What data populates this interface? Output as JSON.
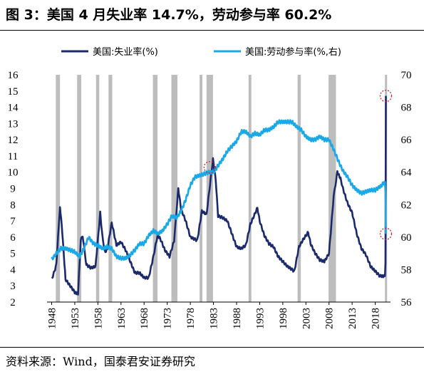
{
  "title": "图 3：美国 4 月失业率 14.7%，劳动参与率 60.2%",
  "source": "资料来源：Wind，国泰君安证券研究",
  "colors": {
    "unemployment": "#1b2a6b",
    "participation": "#1aa9e6",
    "recession": "#bdbdbd",
    "marker": "#d2232a"
  },
  "chart_data": {
    "type": "line",
    "title": "",
    "legend_position": "top",
    "x_ticks": [
      "1948",
      "1953",
      "1958",
      "1963",
      "1968",
      "1973",
      "1978",
      "1983",
      "1988",
      "1993",
      "1998",
      "2003",
      "2008",
      "2013",
      "2018"
    ],
    "y_left": {
      "label": "",
      "ticks": [
        2,
        3,
        4,
        5,
        6,
        7,
        8,
        9,
        10,
        11,
        12,
        13,
        14,
        15,
        16
      ],
      "range": [
        2,
        16
      ]
    },
    "y_right": {
      "label": "",
      "ticks": [
        56,
        58,
        60,
        62,
        64,
        66,
        68,
        70
      ],
      "range": [
        56,
        70
      ]
    },
    "recession_shading": [
      [
        1948.9,
        1949.8
      ],
      [
        1953.5,
        1954.4
      ],
      [
        1957.6,
        1958.3
      ],
      [
        1960.3,
        1961.1
      ],
      [
        1969.9,
        1970.9
      ],
      [
        1973.9,
        1975.2
      ],
      [
        1980.0,
        1980.6
      ],
      [
        1981.5,
        1982.9
      ],
      [
        1990.6,
        1991.2
      ],
      [
        2001.2,
        2001.9
      ],
      [
        2007.9,
        2009.5
      ],
      [
        2020.1,
        2020.4
      ]
    ],
    "highlight_markers": [
      {
        "series": "美国:劳动参与率(%,右)",
        "x": 1982.2,
        "y": 64.3
      },
      {
        "series": "美国:失业率(%)",
        "x": 2020.3,
        "y": 14.7
      },
      {
        "series": "美国:劳动参与率(%,右)",
        "x": 2020.3,
        "y": 60.2
      }
    ],
    "series": [
      {
        "name": "美国:失业率(%)",
        "axis": "left",
        "points": [
          [
            1948,
            3.4
          ],
          [
            1948.5,
            3.8
          ],
          [
            1949,
            4.3
          ],
          [
            1949.5,
            6.5
          ],
          [
            1949.8,
            7.9
          ],
          [
            1950.3,
            6.3
          ],
          [
            1951,
            3.4
          ],
          [
            1952,
            3.0
          ],
          [
            1953,
            2.6
          ],
          [
            1953.7,
            2.5
          ],
          [
            1954.3,
            5.8
          ],
          [
            1954.7,
            6.1
          ],
          [
            1955.5,
            4.3
          ],
          [
            1956.5,
            4.1
          ],
          [
            1957.5,
            4.2
          ],
          [
            1958.5,
            7.5
          ],
          [
            1959,
            6.0
          ],
          [
            1959.5,
            5.1
          ],
          [
            1960,
            5.2
          ],
          [
            1961,
            6.9
          ],
          [
            1962,
            5.5
          ],
          [
            1963,
            5.7
          ],
          [
            1964,
            5.2
          ],
          [
            1965,
            4.5
          ],
          [
            1966,
            3.8
          ],
          [
            1967,
            3.8
          ],
          [
            1968,
            3.5
          ],
          [
            1969,
            3.5
          ],
          [
            1970,
            4.8
          ],
          [
            1970.9,
            6.1
          ],
          [
            1971.5,
            5.9
          ],
          [
            1972.5,
            5.2
          ],
          [
            1973.5,
            4.8
          ],
          [
            1974.5,
            5.8
          ],
          [
            1975.4,
            9.0
          ],
          [
            1976,
            7.7
          ],
          [
            1977,
            7.0
          ],
          [
            1978,
            6.0
          ],
          [
            1979.5,
            5.8
          ],
          [
            1980.5,
            7.6
          ],
          [
            1981.5,
            7.4
          ],
          [
            1982.9,
            10.8
          ],
          [
            1983.5,
            9.5
          ],
          [
            1984,
            7.3
          ],
          [
            1985,
            7.2
          ],
          [
            1986,
            7.0
          ],
          [
            1987,
            6.2
          ],
          [
            1988,
            5.4
          ],
          [
            1989,
            5.3
          ],
          [
            1990,
            5.5
          ],
          [
            1991,
            6.8
          ],
          [
            1992.5,
            7.8
          ],
          [
            1993,
            7.0
          ],
          [
            1994,
            6.1
          ],
          [
            1995,
            5.6
          ],
          [
            1996,
            5.4
          ],
          [
            1997,
            4.8
          ],
          [
            1998,
            4.5
          ],
          [
            1999,
            4.2
          ],
          [
            2000.5,
            3.9
          ],
          [
            2001.5,
            5.4
          ],
          [
            2002.5,
            5.9
          ],
          [
            2003.5,
            6.3
          ],
          [
            2004,
            5.6
          ],
          [
            2005,
            5.0
          ],
          [
            2006,
            4.6
          ],
          [
            2007,
            4.5
          ],
          [
            2008,
            5.0
          ],
          [
            2009,
            8.5
          ],
          [
            2009.8,
            10.0
          ],
          [
            2010.5,
            9.6
          ],
          [
            2011,
            9.0
          ],
          [
            2012,
            8.1
          ],
          [
            2013,
            7.5
          ],
          [
            2014,
            6.2
          ],
          [
            2015,
            5.3
          ],
          [
            2016,
            4.9
          ],
          [
            2017,
            4.2
          ],
          [
            2018,
            3.9
          ],
          [
            2019,
            3.6
          ],
          [
            2020.1,
            3.6
          ],
          [
            2020.2,
            4.4
          ],
          [
            2020.3,
            14.7
          ]
        ]
      },
      {
        "name": "美国:劳动参与率(%,右)",
        "axis": "right",
        "points": [
          [
            1948,
            58.6
          ],
          [
            1949,
            59.0
          ],
          [
            1950,
            59.3
          ],
          [
            1951,
            59.3
          ],
          [
            1952,
            59.2
          ],
          [
            1953,
            59.1
          ],
          [
            1954,
            58.8
          ],
          [
            1955,
            59.3
          ],
          [
            1956,
            60.0
          ],
          [
            1957,
            59.6
          ],
          [
            1958,
            59.5
          ],
          [
            1959,
            59.3
          ],
          [
            1960,
            59.4
          ],
          [
            1961,
            59.3
          ],
          [
            1962,
            58.8
          ],
          [
            1963,
            58.7
          ],
          [
            1964,
            58.7
          ],
          [
            1965,
            58.9
          ],
          [
            1966,
            59.2
          ],
          [
            1967,
            59.6
          ],
          [
            1968,
            59.6
          ],
          [
            1969,
            60.1
          ],
          [
            1970,
            60.4
          ],
          [
            1971,
            60.2
          ],
          [
            1972,
            60.4
          ],
          [
            1973,
            60.8
          ],
          [
            1974,
            61.3
          ],
          [
            1975,
            61.2
          ],
          [
            1976,
            61.6
          ],
          [
            1977,
            62.3
          ],
          [
            1978,
            63.2
          ],
          [
            1979,
            63.7
          ],
          [
            1980,
            63.8
          ],
          [
            1981,
            63.9
          ],
          [
            1982,
            64.0
          ],
          [
            1983,
            64.0
          ],
          [
            1984,
            64.4
          ],
          [
            1985,
            64.8
          ],
          [
            1986,
            65.3
          ],
          [
            1987,
            65.6
          ],
          [
            1988,
            65.9
          ],
          [
            1989,
            66.5
          ],
          [
            1990,
            66.5
          ],
          [
            1991,
            66.2
          ],
          [
            1992,
            66.4
          ],
          [
            1993,
            66.3
          ],
          [
            1994,
            66.6
          ],
          [
            1995,
            66.6
          ],
          [
            1996,
            66.8
          ],
          [
            1997,
            67.1
          ],
          [
            1998,
            67.1
          ],
          [
            1999,
            67.1
          ],
          [
            2000,
            67.1
          ],
          [
            2001,
            66.8
          ],
          [
            2002,
            66.6
          ],
          [
            2003,
            66.2
          ],
          [
            2004,
            66.0
          ],
          [
            2005,
            66.0
          ],
          [
            2006,
            66.2
          ],
          [
            2007,
            66.0
          ],
          [
            2008,
            66.0
          ],
          [
            2009,
            65.4
          ],
          [
            2010,
            64.7
          ],
          [
            2011,
            64.1
          ],
          [
            2012,
            63.7
          ],
          [
            2013,
            63.2
          ],
          [
            2014,
            62.9
          ],
          [
            2015,
            62.7
          ],
          [
            2016,
            62.8
          ],
          [
            2017,
            62.9
          ],
          [
            2018,
            62.9
          ],
          [
            2019,
            63.1
          ],
          [
            2020.1,
            63.4
          ],
          [
            2020.2,
            62.7
          ],
          [
            2020.3,
            60.2
          ]
        ]
      }
    ]
  }
}
